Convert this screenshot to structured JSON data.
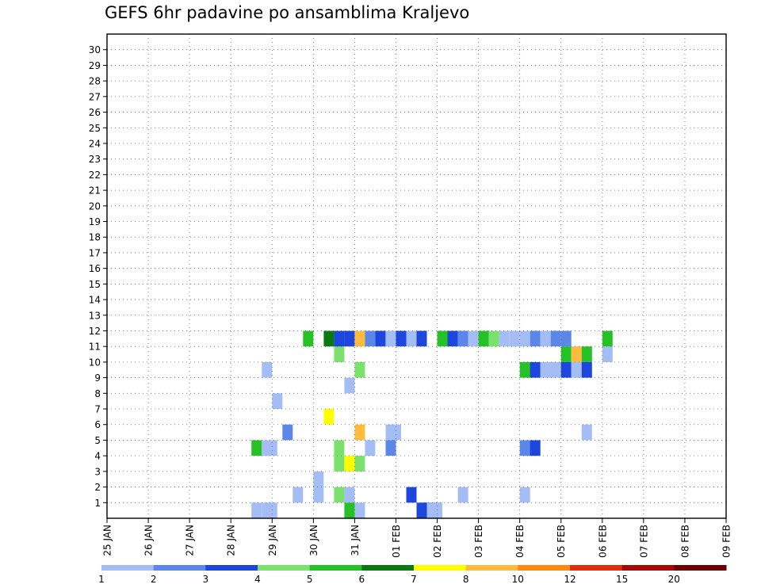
{
  "chart_data": {
    "type": "heatmap",
    "title": "GEFS 6hr padavine po ansamblima Kraljevo",
    "x_tick_labels": [
      "25 JAN",
      "26 JAN",
      "27 JAN",
      "28 JAN",
      "29 JAN",
      "30 JAN",
      "31 JAN",
      "01 FEB",
      "02 FEB",
      "03 FEB",
      "04 FEB",
      "05 FEB",
      "06 FEB",
      "07 FEB",
      "08 FEB",
      "09 FEB"
    ],
    "y_tick_labels": [
      "1",
      "2",
      "3",
      "4",
      "5",
      "6",
      "7",
      "8",
      "9",
      "10",
      "11",
      "12",
      "13",
      "14",
      "15",
      "16",
      "17",
      "18",
      "19",
      "20",
      "21",
      "22",
      "23",
      "24",
      "25",
      "26",
      "27",
      "28",
      "29",
      "30"
    ],
    "x_steps_per_day": 4,
    "y_members": 31,
    "grid": true,
    "legend": {
      "position": "bottom",
      "labels": [
        "1",
        "2",
        "3",
        "4",
        "5",
        "6",
        "7",
        "8",
        "10",
        "12",
        "15",
        "20"
      ],
      "colors": [
        "#a4bdf5",
        "#5a87e8",
        "#1c46dc",
        "#7ae26c",
        "#24c224",
        "#0a7a10",
        "#ffff00",
        "#ffbb3c",
        "#ff8a10",
        "#e12b10",
        "#a40a06",
        "#6a0000"
      ]
    },
    "cells": [
      [
        0,
        29,
        14,
        1
      ],
      [
        0,
        29,
        15,
        1
      ],
      [
        0,
        29,
        15.1,
        1
      ],
      [
        0,
        29,
        23,
        5
      ],
      [
        0,
        29,
        24,
        1
      ],
      [
        0,
        29,
        30,
        3
      ],
      [
        0,
        29,
        30.1,
        3
      ],
      [
        0,
        29,
        30.2,
        2
      ],
      [
        0,
        29,
        30.3,
        2
      ],
      [
        0,
        29,
        31,
        1
      ],
      [
        0,
        29,
        31.1,
        1
      ],
      [
        1,
        28,
        18,
        1
      ],
      [
        1,
        28,
        20,
        1
      ],
      [
        1,
        28,
        22,
        4
      ],
      [
        1,
        28,
        23,
        1
      ],
      [
        1,
        28,
        29,
        3
      ],
      [
        1,
        28,
        34,
        1
      ],
      [
        1,
        28,
        40,
        1
      ],
      [
        2,
        27,
        20,
        1
      ],
      [
        3,
        26,
        22,
        4
      ],
      [
        3,
        26,
        23,
        7
      ],
      [
        3,
        26,
        24,
        4
      ],
      [
        4,
        25,
        14,
        5
      ],
      [
        4,
        25,
        15,
        1
      ],
      [
        4,
        25,
        15.1,
        1
      ],
      [
        4,
        25,
        22,
        4
      ],
      [
        4,
        25,
        25,
        1
      ],
      [
        4,
        25,
        27,
        2
      ],
      [
        4,
        25,
        40,
        2
      ],
      [
        4,
        25,
        40.1,
        2
      ],
      [
        4,
        25,
        41,
        3
      ],
      [
        5,
        24,
        17,
        2
      ],
      [
        5,
        24,
        24,
        8
      ],
      [
        5,
        24,
        27,
        1
      ],
      [
        5,
        24,
        27.1,
        1
      ],
      [
        5,
        24,
        46,
        1
      ],
      [
        6,
        23,
        21,
        7
      ],
      [
        7,
        22,
        16,
        1
      ],
      [
        8,
        22,
        23,
        1
      ],
      [
        9,
        19,
        15,
        1
      ],
      [
        9,
        19,
        24,
        4
      ],
      [
        9,
        19,
        40,
        5
      ],
      [
        9,
        19,
        40.1,
        5
      ],
      [
        9,
        19,
        41,
        3
      ],
      [
        9,
        19,
        42,
        1
      ],
      [
        9,
        19,
        42.1,
        1
      ],
      [
        9,
        19,
        43,
        1
      ],
      [
        9,
        19,
        44,
        3
      ],
      [
        9,
        19,
        45,
        1
      ],
      [
        9,
        19,
        45.1,
        1
      ],
      [
        9,
        19,
        45.2,
        3
      ],
      [
        10,
        21,
        22,
        4
      ],
      [
        10,
        21,
        44,
        5
      ],
      [
        10,
        21,
        45,
        8
      ],
      [
        10,
        21,
        46,
        5
      ],
      [
        10,
        21,
        48,
        1
      ],
      [
        11,
        17,
        19,
        5
      ],
      [
        11,
        17,
        21,
        6
      ],
      [
        11,
        17,
        22,
        3
      ],
      [
        11,
        17,
        23,
        3
      ],
      [
        11,
        17,
        24,
        8
      ],
      [
        11,
        17,
        25,
        2
      ],
      [
        11,
        17,
        26,
        3
      ],
      [
        11,
        17,
        27,
        1
      ],
      [
        11,
        17,
        28,
        3
      ],
      [
        11,
        17,
        29,
        1
      ],
      [
        11,
        17,
        30,
        3
      ],
      [
        11,
        17,
        32,
        5
      ],
      [
        11,
        17,
        33,
        3
      ],
      [
        11,
        17,
        34,
        2
      ],
      [
        11,
        17,
        35,
        1
      ],
      [
        11,
        17,
        36,
        5
      ],
      [
        11,
        17,
        37,
        4
      ],
      [
        11,
        17,
        38,
        1
      ],
      [
        11,
        17,
        39,
        1
      ],
      [
        11,
        17,
        40,
        1
      ],
      [
        11,
        17,
        41,
        2
      ],
      [
        11,
        17,
        42,
        1
      ],
      [
        11,
        17,
        43,
        2
      ],
      [
        11,
        17,
        44,
        2
      ],
      [
        11,
        17,
        48,
        5
      ]
    ]
  }
}
